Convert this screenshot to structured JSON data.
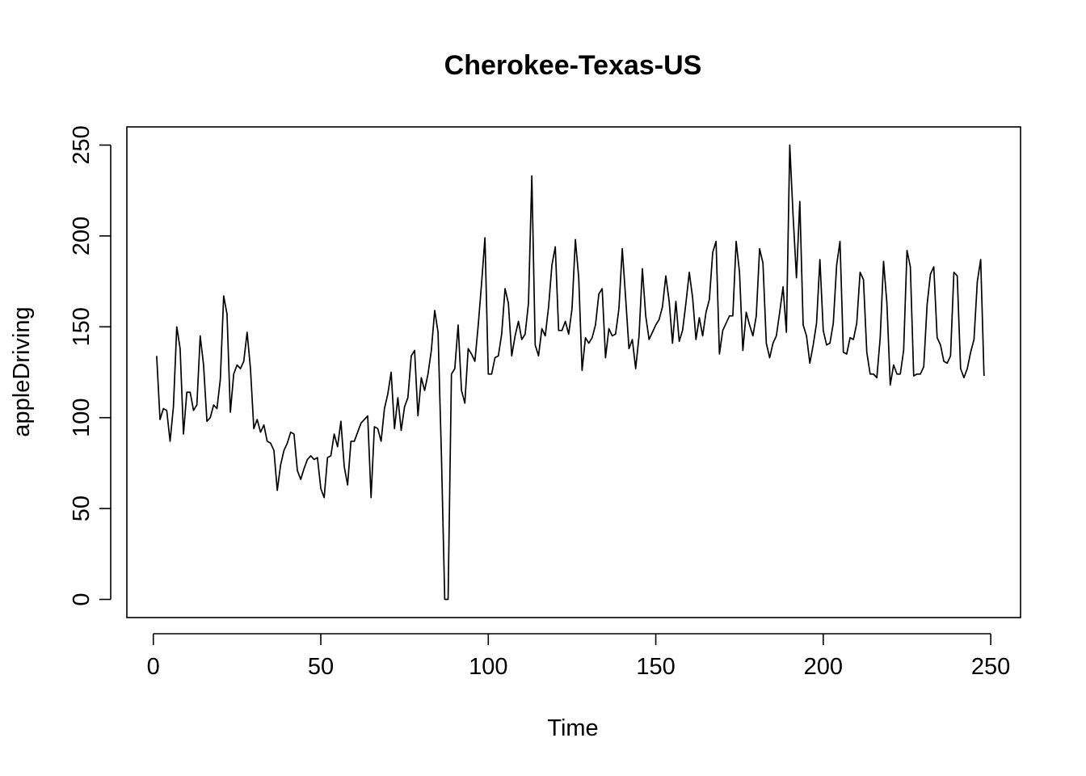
{
  "chart_data": {
    "type": "line",
    "title": "Cherokee-Texas-US",
    "xlabel": "Time",
    "ylabel": "appleDriving",
    "xlim": [
      -7.9,
      258.9
    ],
    "ylim": [
      -10,
      260
    ],
    "x_ticks": [
      0,
      50,
      100,
      150,
      200,
      250
    ],
    "y_ticks": [
      0,
      50,
      100,
      150,
      200,
      250
    ],
    "grid": false,
    "color": "#000000",
    "series": [
      {
        "x_start": 1,
        "values": [
          134,
          99,
          105,
          104,
          87,
          106,
          150,
          138,
          91,
          114,
          114,
          104,
          107,
          145,
          129,
          98,
          100,
          107,
          105,
          121,
          167,
          157,
          103,
          124,
          129,
          127,
          131,
          147,
          127,
          94,
          99,
          92,
          96,
          87,
          86,
          82,
          60,
          74,
          82,
          86,
          92,
          91,
          71,
          66,
          72,
          77,
          79,
          77,
          78,
          61,
          56,
          78,
          79,
          91,
          84,
          98,
          73,
          63,
          87,
          87,
          92,
          97,
          99,
          101,
          56,
          95,
          94,
          87,
          105,
          113,
          125,
          94,
          111,
          93,
          106,
          111,
          134,
          137,
          101,
          122,
          115,
          124,
          137,
          159,
          147,
          80,
          0,
          0,
          124,
          127,
          151,
          115,
          108,
          138,
          135,
          131,
          151,
          174,
          199,
          124,
          124,
          133,
          134,
          146,
          171,
          163,
          134,
          145,
          153,
          143,
          146,
          163,
          233,
          140,
          134,
          149,
          145,
          161,
          184,
          194,
          148,
          148,
          153,
          146,
          160,
          198,
          177,
          126,
          144,
          141,
          144,
          151,
          168,
          171,
          133,
          149,
          145,
          146,
          160,
          193,
          166,
          138,
          143,
          127,
          145,
          182,
          156,
          143,
          147,
          151,
          154,
          161,
          178,
          164,
          141,
          164,
          142,
          148,
          163,
          180,
          166,
          143,
          155,
          145,
          158,
          165,
          191,
          197,
          135,
          148,
          152,
          156,
          156,
          197,
          180,
          137,
          158,
          151,
          145,
          156,
          193,
          185,
          141,
          133,
          141,
          145,
          158,
          172,
          147,
          250,
          211,
          177,
          219,
          151,
          145,
          130,
          140,
          152,
          187,
          148,
          140,
          141,
          152,
          184,
          197,
          136,
          135,
          144,
          143,
          152,
          180,
          176,
          136,
          124,
          124,
          122,
          144,
          186,
          163,
          118,
          129,
          124,
          124,
          137,
          192,
          183,
          123,
          124,
          124,
          128,
          162,
          179,
          183,
          144,
          140,
          131,
          130,
          134,
          180,
          178,
          127,
          122,
          127,
          136,
          143,
          175,
          187,
          123
        ]
      }
    ]
  }
}
